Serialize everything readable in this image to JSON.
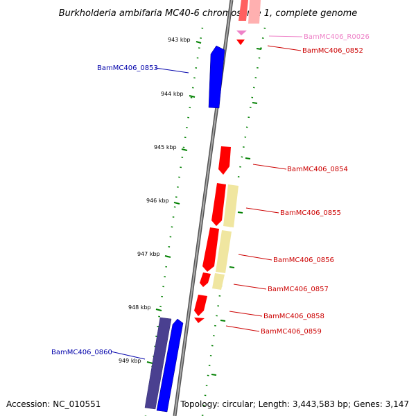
{
  "title": "Burkholderia ambifaria MC40-6 chromosome 1, complete genome",
  "footer": {
    "accession": "Accession: NC_010551",
    "summary": "Topology: circular; Length: 3,443,583 bp; Genes: 3,147"
  },
  "ticks": [
    "943 kbp",
    "944 kbp",
    "945 kbp",
    "946 kbp",
    "947 kbp",
    "948 kbp",
    "949 kbp"
  ],
  "genes": [
    {
      "label": "BamMC406_R0026",
      "color": "#ee82c8"
    },
    {
      "label": "BamMC406_0852",
      "color": "#cc0000"
    },
    {
      "label": "BamMC406_0853",
      "color": "#0000aa"
    },
    {
      "label": "BamMC406_0854",
      "color": "#cc0000"
    },
    {
      "label": "BamMC406_0855",
      "color": "#cc0000"
    },
    {
      "label": "BamMC406_0856",
      "color": "#cc0000"
    },
    {
      "label": "BamMC406_0857",
      "color": "#cc0000"
    },
    {
      "label": "BamMC406_0858",
      "color": "#cc0000"
    },
    {
      "label": "BamMC406_0859",
      "color": "#cc0000"
    },
    {
      "label": "BamMC406_0860",
      "color": "#0000aa"
    }
  ],
  "colors": {
    "backbone": "#888888",
    "cds_forward": "#ff0000",
    "cds_reverse": "#0000ff",
    "cds_reverse_dark": "#4a4090",
    "rna": "#ee82c8",
    "orf_highlight": "#f0e6a0",
    "tick": "#008000",
    "dots": "#008000"
  }
}
